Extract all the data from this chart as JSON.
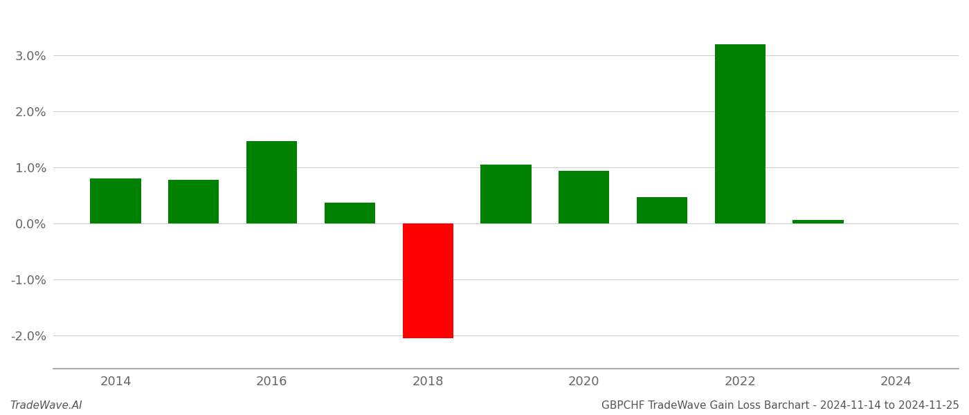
{
  "years": [
    2014,
    2015,
    2016,
    2017,
    2018,
    2019,
    2020,
    2021,
    2022,
    2023
  ],
  "values": [
    0.008,
    0.0078,
    0.0147,
    0.0037,
    -0.0205,
    0.0105,
    0.0093,
    0.0047,
    0.032,
    0.0006
  ],
  "colors": [
    "#008000",
    "#008000",
    "#008000",
    "#008000",
    "#ff0000",
    "#008000",
    "#008000",
    "#008000",
    "#008000",
    "#008000"
  ],
  "background_color": "#ffffff",
  "grid_color": "#cccccc",
  "bar_width": 0.65,
  "ylim": [
    -0.026,
    0.038
  ],
  "yticks": [
    -0.02,
    -0.01,
    0.0,
    0.01,
    0.02,
    0.03
  ],
  "tick_fontsize": 13,
  "footer_left": "TradeWave.AI",
  "footer_right": "GBPCHF TradeWave Gain Loss Barchart - 2024-11-14 to 2024-11-25",
  "footer_fontsize": 11,
  "spine_color": "#999999",
  "xlim": [
    2013.2,
    2024.8
  ],
  "xticks": [
    2014,
    2016,
    2018,
    2020,
    2022,
    2024
  ],
  "xtick_labels": [
    "2014",
    "2016",
    "2018",
    "2020",
    "2022",
    "2024"
  ]
}
